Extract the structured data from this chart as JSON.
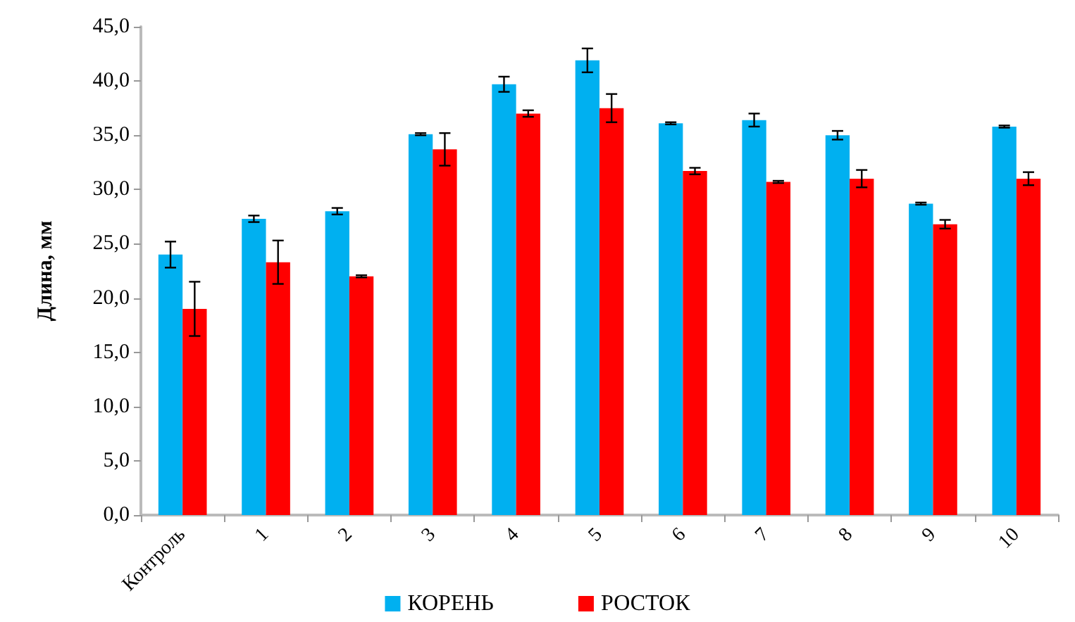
{
  "chart_data": {
    "type": "bar",
    "ylabel": "Длина, мм",
    "categories": [
      "Контроль",
      "1",
      "2",
      "3",
      "4",
      "5",
      "6",
      "7",
      "8",
      "9",
      "10"
    ],
    "series": [
      {
        "name": "КОРЕНЬ",
        "color": "#00b0f0",
        "values": [
          24.0,
          27.3,
          28.0,
          35.1,
          39.7,
          41.9,
          36.1,
          36.4,
          35.0,
          28.7,
          35.8
        ],
        "errors": [
          1.2,
          0.3,
          0.3,
          0.1,
          0.7,
          1.1,
          0.1,
          0.6,
          0.4,
          0.1,
          0.1
        ]
      },
      {
        "name": "РОСТОК",
        "color": "#ff0000",
        "values": [
          19.0,
          23.3,
          22.0,
          33.7,
          37.0,
          37.5,
          31.7,
          30.7,
          31.0,
          26.8,
          31.0
        ],
        "errors": [
          2.5,
          2.0,
          0.1,
          1.5,
          0.3,
          1.3,
          0.3,
          0.1,
          0.8,
          0.4,
          0.6
        ]
      }
    ],
    "ylim": [
      0,
      45
    ],
    "yticks": [
      {
        "value": 0,
        "label": "0,0"
      },
      {
        "value": 5,
        "label": "5,0"
      },
      {
        "value": 10,
        "label": "10,0"
      },
      {
        "value": 15,
        "label": "15,0"
      },
      {
        "value": 20,
        "label": "20,0"
      },
      {
        "value": 25,
        "label": "25,0"
      },
      {
        "value": 30,
        "label": "30,0"
      },
      {
        "value": 35,
        "label": "35,0"
      },
      {
        "value": 40,
        "label": "40,0"
      },
      {
        "value": 45,
        "label": "45,0"
      }
    ],
    "grid": false,
    "legend": "bottom"
  }
}
